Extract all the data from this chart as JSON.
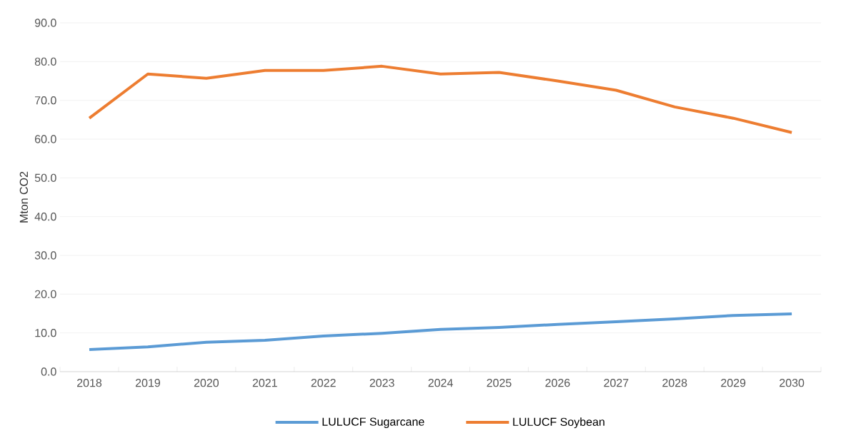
{
  "chart_data": {
    "type": "line",
    "ylabel": "Mton CO2",
    "categories": [
      "2018",
      "2019",
      "2020",
      "2021",
      "2022",
      "2023",
      "2024",
      "2025",
      "2026",
      "2027",
      "2028",
      "2029",
      "2030"
    ],
    "series": [
      {
        "name": "LULUCF Sugarcane",
        "color": "#5b9bd5",
        "values": [
          5.7,
          6.4,
          7.6,
          8.1,
          9.2,
          9.9,
          10.9,
          11.4,
          12.2,
          12.9,
          13.6,
          14.5,
          14.9
        ]
      },
      {
        "name": "LULUCF Soybean",
        "color": "#ed7d31",
        "values": [
          65.4,
          76.8,
          75.7,
          77.7,
          77.7,
          78.8,
          76.8,
          77.2,
          75.0,
          72.6,
          68.3,
          65.4,
          61.7
        ]
      }
    ],
    "ylim": [
      0,
      90
    ],
    "yticks": [
      {
        "value": 0,
        "label": "0.0"
      },
      {
        "value": 10,
        "label": "10.0"
      },
      {
        "value": 20,
        "label": "20.0"
      },
      {
        "value": 30,
        "label": "30.0"
      },
      {
        "value": 40,
        "label": "40.0"
      },
      {
        "value": 50,
        "label": "50.0"
      },
      {
        "value": 60,
        "label": "60.0"
      },
      {
        "value": 70,
        "label": "70.0"
      },
      {
        "value": 80,
        "label": "80.0"
      },
      {
        "value": 90,
        "label": "90.0"
      }
    ],
    "grid": "y",
    "legend": "bottom",
    "marker": "none",
    "line_style": "solid"
  }
}
